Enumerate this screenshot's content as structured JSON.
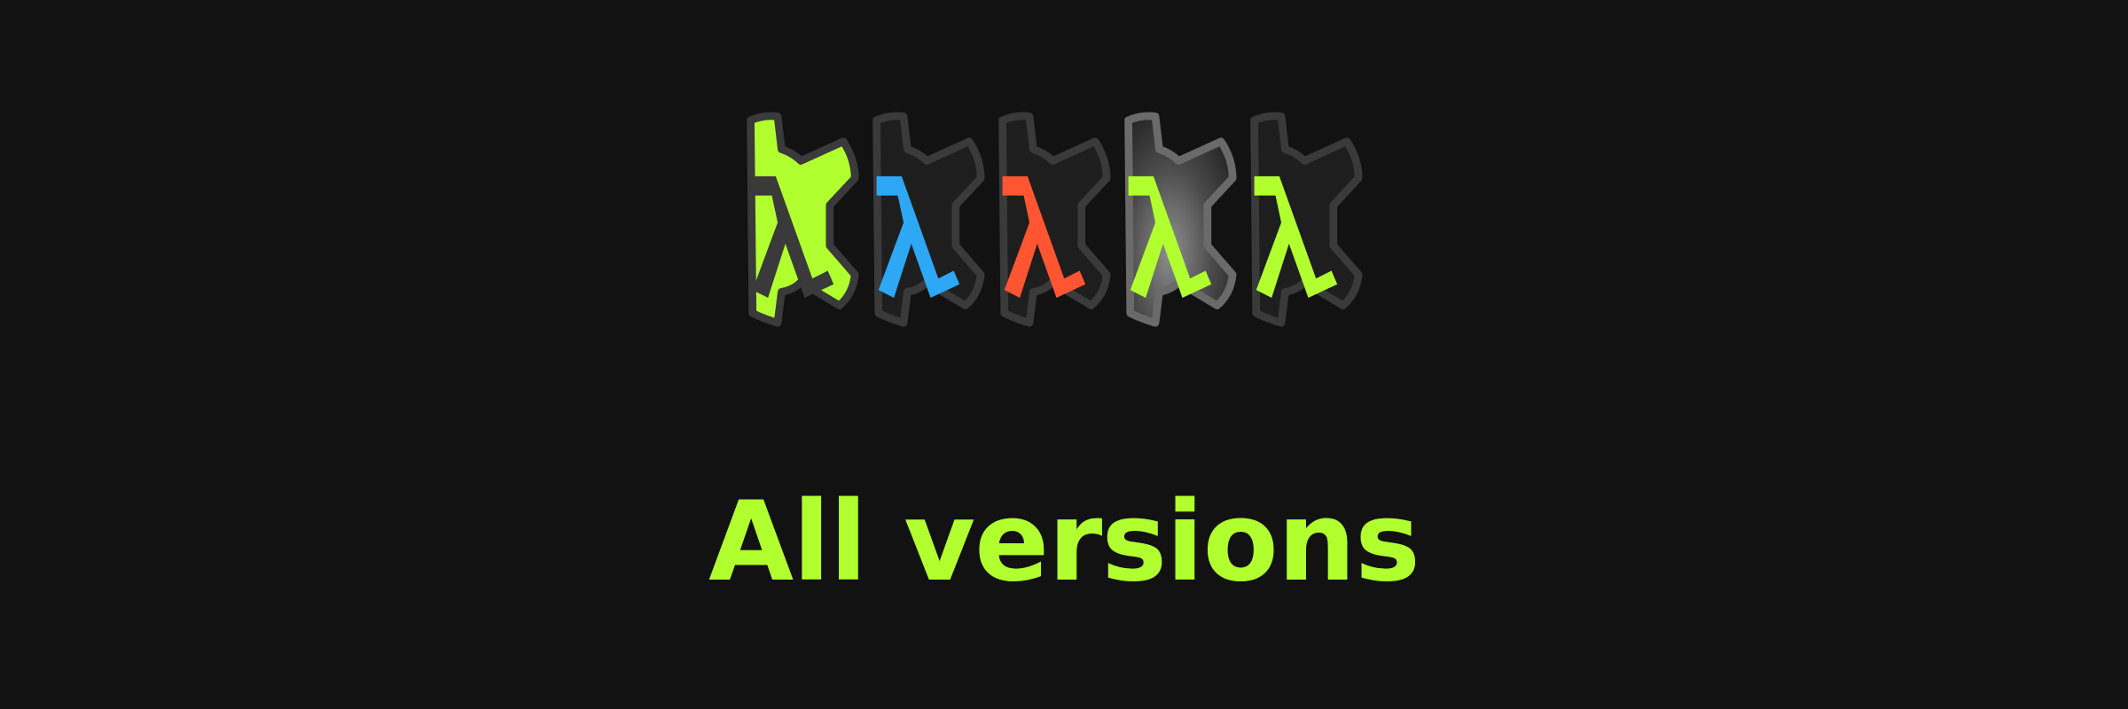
{
  "headline": "All versions",
  "colors": {
    "background": "#121212",
    "accent": "#b1ff2f",
    "outline": "#3a3a3a"
  },
  "logos": [
    {
      "icon": "gear-lambda-icon",
      "body_color": "#b1ff2f",
      "glyph_color": "#3a3a3a"
    },
    {
      "icon": "gear-lambda-icon",
      "body_color": "#1e1e1e",
      "glyph_color": "#2ea8f5"
    },
    {
      "icon": "gear-lambda-icon",
      "body_color": "#1e1e1e",
      "glyph_color": "#ff5533"
    },
    {
      "icon": "gear-lambda-icon",
      "body_color": "gradient-grey",
      "glyph_color": "#b1ff2f"
    },
    {
      "icon": "gear-lambda-icon",
      "body_color": "#1e1e1e",
      "glyph_color": "#b1ff2f"
    }
  ]
}
